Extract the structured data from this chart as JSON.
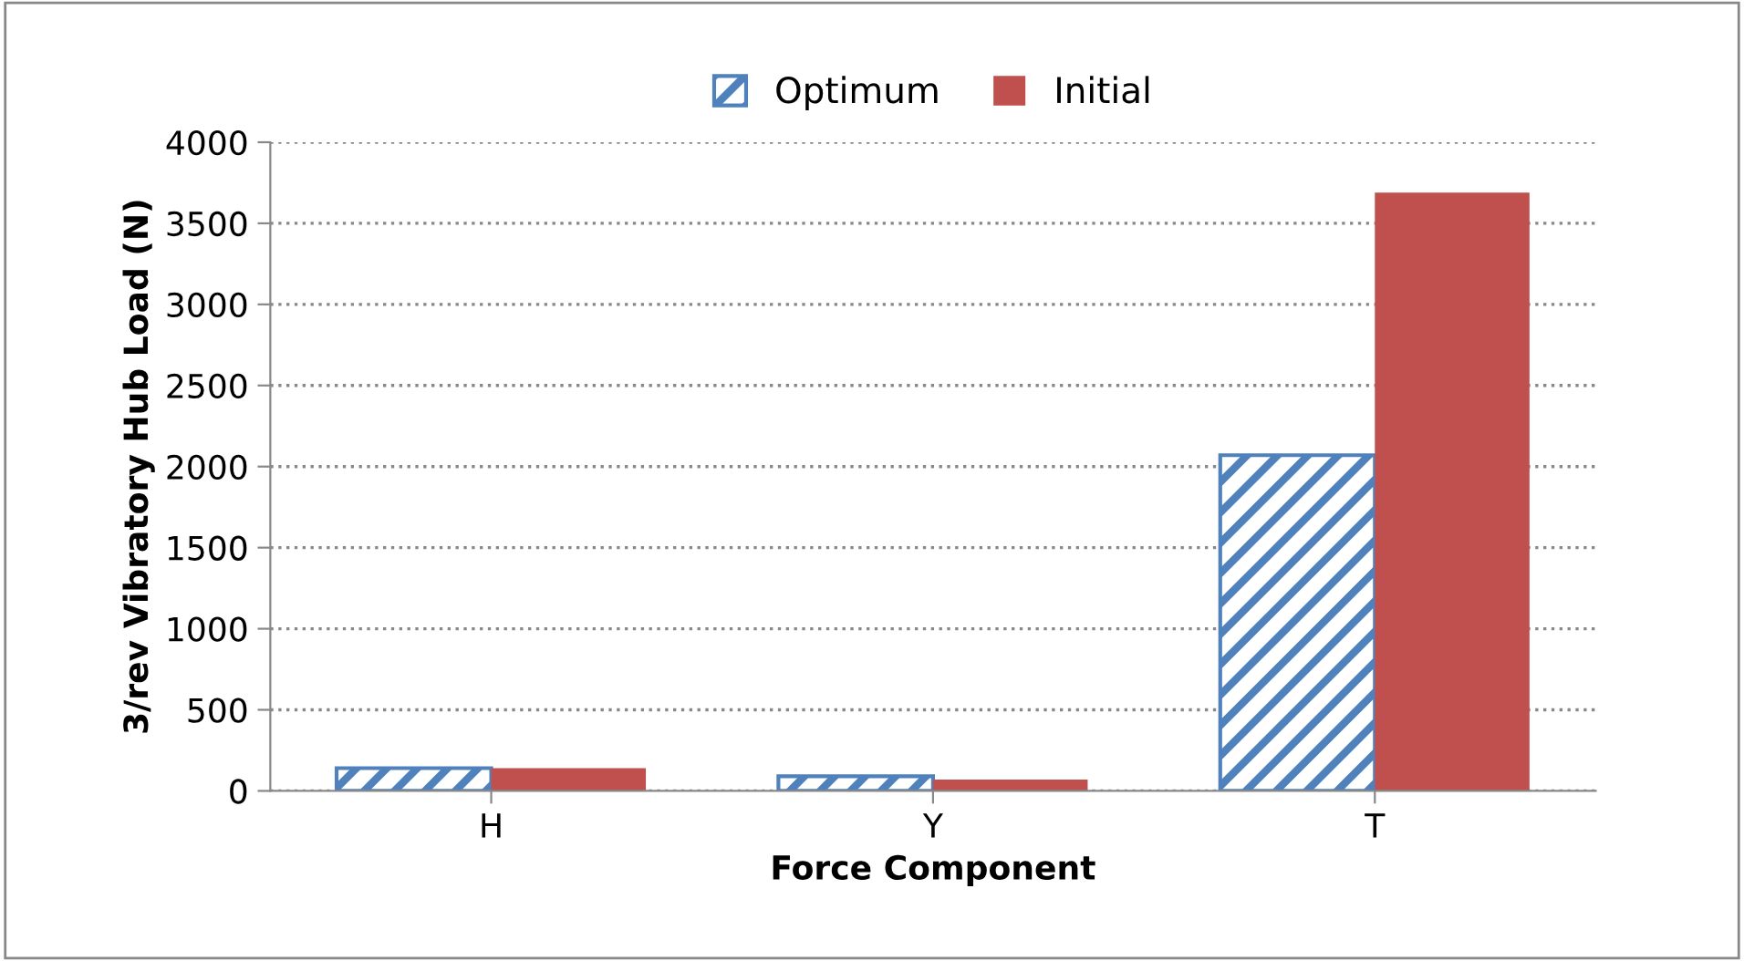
{
  "chart_data": {
    "type": "bar",
    "xlabel": "Force Component",
    "ylabel": "3/rev Vibratory Hub Load (N)",
    "categories": [
      "H",
      "Y",
      "T"
    ],
    "series": [
      {
        "name": "Optimum",
        "color": "#4f81bd",
        "values": [
          140,
          90,
          2070
        ]
      },
      {
        "name": "Initial",
        "color": "#c0504d",
        "values": [
          140,
          70,
          3690
        ]
      }
    ],
    "ylim": [
      0,
      4000
    ],
    "yticks": [
      0,
      500,
      1000,
      1500,
      2000,
      2500,
      3000,
      3500,
      4000
    ],
    "grid": "y",
    "legend": "top"
  }
}
